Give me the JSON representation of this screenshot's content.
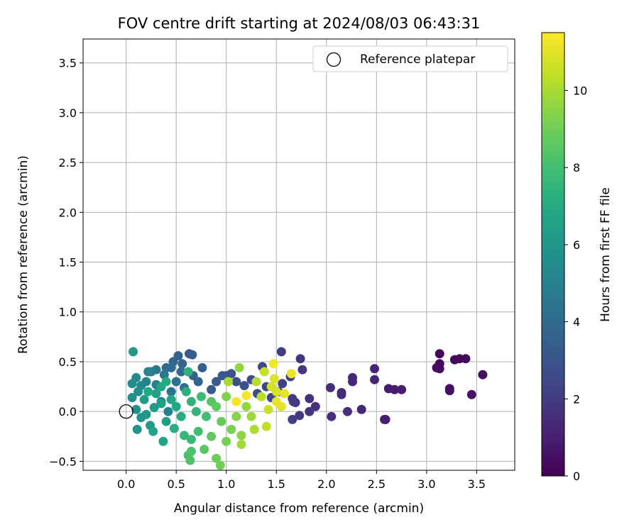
{
  "chart_data": {
    "type": "scatter",
    "title": "FOV centre drift starting at 2024/08/03 06:43:31",
    "xlabel": "Angular distance from reference (arcmin)",
    "ylabel": "Rotation from reference (arcmin)",
    "xlim": [
      -0.43,
      3.88
    ],
    "ylim": [
      -0.59,
      3.74
    ],
    "xticks": [
      0.0,
      0.5,
      1.0,
      1.5,
      2.0,
      2.5,
      3.0,
      3.5
    ],
    "xtick_labels": [
      "0.0",
      "0.5",
      "1.0",
      "1.5",
      "2.0",
      "2.5",
      "3.0",
      "3.5"
    ],
    "yticks": [
      -0.5,
      0.0,
      0.5,
      1.0,
      1.5,
      2.0,
      2.5,
      3.0,
      3.5
    ],
    "ytick_labels": [
      "−0.5",
      "0.0",
      "0.5",
      "1.0",
      "1.5",
      "2.0",
      "2.5",
      "3.0",
      "3.5"
    ],
    "grid": true,
    "legend": {
      "position": "top-right",
      "entries": [
        {
          "label": "Reference platepar",
          "marker": "open-circle"
        }
      ]
    },
    "reference_point": {
      "x": 0.0,
      "y": 0.0,
      "label": "Reference platepar"
    },
    "colorbar": {
      "label": "Hours from first FF file",
      "colormap": "viridis",
      "range": [
        0,
        11.5
      ],
      "ticks": [
        0,
        2,
        4,
        6,
        8,
        10
      ],
      "tick_labels": [
        "0",
        "2",
        "4",
        "6",
        "8",
        "10"
      ]
    },
    "series": [
      {
        "note_fields": [
          "x",
          "y",
          "hours"
        ],
        "points": [
          [
            3.13,
            0.58,
            0.2
          ],
          [
            3.1,
            0.44,
            0.3
          ],
          [
            3.13,
            0.48,
            0.3
          ],
          [
            3.13,
            0.43,
            0.4
          ],
          [
            3.28,
            0.52,
            0.3
          ],
          [
            3.33,
            0.53,
            0.3
          ],
          [
            3.39,
            0.53,
            0.3
          ],
          [
            3.56,
            0.37,
            0.5
          ],
          [
            3.23,
            0.23,
            0.5
          ],
          [
            3.23,
            0.21,
            0.5
          ],
          [
            3.45,
            0.17,
            0.6
          ],
          [
            2.62,
            0.23,
            0.9
          ],
          [
            2.68,
            0.22,
            0.9
          ],
          [
            2.75,
            0.22,
            0.9
          ],
          [
            2.58,
            -0.08,
            1.0
          ],
          [
            2.59,
            -0.08,
            1.0
          ],
          [
            2.48,
            0.43,
            1.2
          ],
          [
            2.48,
            0.32,
            1.2
          ],
          [
            2.35,
            0.02,
            1.3
          ],
          [
            2.26,
            0.34,
            1.3
          ],
          [
            2.26,
            0.3,
            1.3
          ],
          [
            2.15,
            0.17,
            1.4
          ],
          [
            2.15,
            0.19,
            1.4
          ],
          [
            2.21,
            0.0,
            1.5
          ],
          [
            2.04,
            0.24,
            1.5
          ],
          [
            2.05,
            -0.05,
            1.5
          ],
          [
            1.89,
            0.05,
            1.6
          ],
          [
            1.83,
            0.13,
            1.7
          ],
          [
            1.83,
            0.0,
            1.7
          ],
          [
            1.74,
            0.53,
            1.8
          ],
          [
            1.76,
            0.42,
            1.8
          ],
          [
            1.73,
            -0.04,
            1.9
          ],
          [
            1.66,
            0.13,
            1.9
          ],
          [
            1.67,
            0.1,
            2.0
          ],
          [
            1.69,
            0.09,
            2.0
          ],
          [
            1.66,
            -0.08,
            2.1
          ],
          [
            1.55,
            0.6,
            2.1
          ],
          [
            1.64,
            0.35,
            2.2
          ],
          [
            1.56,
            0.28,
            2.2
          ],
          [
            1.52,
            0.2,
            2.3
          ],
          [
            1.45,
            0.14,
            2.4
          ],
          [
            1.4,
            0.25,
            2.5
          ],
          [
            1.36,
            0.45,
            2.5
          ],
          [
            1.31,
            0.18,
            2.6
          ],
          [
            1.25,
            0.32,
            2.7
          ],
          [
            1.18,
            0.26,
            2.8
          ],
          [
            1.1,
            0.3,
            2.9
          ],
          [
            1.05,
            0.38,
            2.9
          ],
          [
            1.0,
            0.36,
            3.0
          ],
          [
            0.96,
            0.36,
            3.1
          ],
          [
            0.9,
            0.3,
            3.2
          ],
          [
            0.85,
            0.22,
            3.2
          ],
          [
            0.76,
            0.44,
            3.4
          ],
          [
            0.63,
            0.58,
            3.3
          ],
          [
            0.66,
            0.57,
            3.4
          ],
          [
            0.52,
            0.56,
            3.6
          ],
          [
            0.67,
            0.36,
            3.6
          ],
          [
            0.72,
            0.3,
            3.7
          ],
          [
            0.56,
            0.48,
            3.7
          ],
          [
            0.47,
            0.5,
            3.8
          ],
          [
            0.55,
            0.4,
            3.9
          ],
          [
            0.45,
            0.44,
            4.0
          ],
          [
            0.4,
            0.44,
            4.1
          ],
          [
            0.58,
            0.24,
            4.2
          ],
          [
            0.5,
            0.3,
            4.3
          ],
          [
            0.45,
            0.2,
            4.4
          ],
          [
            0.38,
            0.37,
            4.5
          ],
          [
            0.3,
            0.42,
            4.6
          ],
          [
            0.25,
            0.4,
            4.7
          ],
          [
            0.35,
            0.1,
            4.8
          ],
          [
            0.42,
            0.0,
            4.9
          ],
          [
            0.3,
            0.27,
            5.0
          ],
          [
            0.22,
            0.4,
            5.1
          ],
          [
            0.2,
            0.3,
            5.2
          ],
          [
            0.15,
            0.26,
            5.3
          ],
          [
            0.1,
            0.34,
            5.4
          ],
          [
            0.12,
            0.2,
            5.5
          ],
          [
            0.06,
            0.28,
            5.6
          ],
          [
            0.06,
            0.14,
            5.7
          ],
          [
            0.1,
            0.02,
            5.8
          ],
          [
            0.15,
            -0.06,
            5.9
          ],
          [
            0.2,
            -0.03,
            6.0
          ],
          [
            0.07,
            0.6,
            6.1
          ],
          [
            0.11,
            -0.18,
            6.1
          ],
          [
            0.24,
            -0.14,
            6.2
          ],
          [
            0.28,
            0.04,
            6.3
          ],
          [
            0.18,
            0.12,
            6.3
          ],
          [
            0.3,
            0.18,
            6.4
          ],
          [
            0.35,
            0.08,
            6.5
          ],
          [
            0.4,
            -0.1,
            6.5
          ],
          [
            0.27,
            -0.2,
            6.6
          ],
          [
            0.37,
            -0.3,
            6.6
          ],
          [
            0.45,
            0.12,
            6.7
          ],
          [
            0.5,
            0.05,
            6.8
          ],
          [
            0.35,
            0.25,
            6.8
          ],
          [
            0.22,
            0.2,
            6.9
          ],
          [
            0.4,
            0.3,
            7.0
          ],
          [
            0.55,
            -0.05,
            7.1
          ],
          [
            0.48,
            -0.17,
            7.2
          ],
          [
            0.6,
            0.2,
            7.3
          ],
          [
            0.65,
            0.1,
            7.4
          ],
          [
            0.7,
            0.0,
            7.5
          ],
          [
            0.62,
            0.4,
            7.4
          ],
          [
            0.58,
            -0.24,
            7.6
          ],
          [
            0.65,
            -0.28,
            7.7
          ],
          [
            0.75,
            0.15,
            7.8
          ],
          [
            0.8,
            -0.05,
            7.9
          ],
          [
            0.72,
            -0.2,
            8.0
          ],
          [
            0.62,
            -0.44,
            8.1
          ],
          [
            0.65,
            -0.4,
            8.2
          ],
          [
            0.64,
            -0.49,
            8.3
          ],
          [
            0.85,
            0.1,
            8.4
          ],
          [
            0.78,
            -0.38,
            8.5
          ],
          [
            0.9,
            0.05,
            8.6
          ],
          [
            0.85,
            -0.25,
            8.7
          ],
          [
            0.95,
            -0.1,
            8.8
          ],
          [
            0.9,
            -0.47,
            8.9
          ],
          [
            0.94,
            -0.54,
            9.0
          ],
          [
            1.0,
            -0.3,
            9.1
          ],
          [
            1.05,
            -0.18,
            9.2
          ],
          [
            1.0,
            0.15,
            9.3
          ],
          [
            1.1,
            -0.05,
            9.4
          ],
          [
            1.15,
            -0.24,
            9.5
          ],
          [
            1.13,
            0.44,
            9.6
          ],
          [
            1.2,
            0.05,
            9.7
          ],
          [
            1.25,
            -0.05,
            9.8
          ],
          [
            1.15,
            -0.33,
            9.9
          ],
          [
            1.02,
            0.3,
            10.0
          ],
          [
            1.28,
            -0.18,
            10.1
          ],
          [
            1.3,
            0.3,
            10.2
          ],
          [
            1.35,
            0.15,
            10.3
          ],
          [
            1.4,
            -0.15,
            10.4
          ],
          [
            1.38,
            0.4,
            10.5
          ],
          [
            1.42,
            0.02,
            10.6
          ],
          [
            1.45,
            0.25,
            10.7
          ],
          [
            1.5,
            0.2,
            10.8
          ],
          [
            1.48,
            0.33,
            10.9
          ],
          [
            1.55,
            0.05,
            11.0
          ],
          [
            1.5,
            0.1,
            11.1
          ],
          [
            1.58,
            0.18,
            11.1
          ],
          [
            1.65,
            0.38,
            11.2
          ],
          [
            1.47,
            0.48,
            11.3
          ],
          [
            1.2,
            0.16,
            11.4
          ],
          [
            1.1,
            0.1,
            11.4
          ]
        ]
      }
    ]
  }
}
